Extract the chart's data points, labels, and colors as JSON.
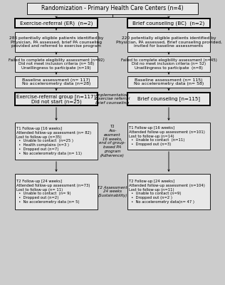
{
  "bg_color": "#cccccc",
  "box_fill": "#e8e8e8",
  "title": "Randomization - Primary Health Care Centers (n=4)",
  "left_arm_title": "Exercise-referral (ER)  (n=2)",
  "right_arm_title": "Brief counseling (BC)  (n=2)",
  "left_box1": "286 potentially eligible patients identified by\nPhysician, PA assessed, brief PA counseling\nprovided and referred to exercise program",
  "right_box1": "220 potentially eligible patients identified by\nPhysician, PA assessed, Brief counseling provided,\ninvited for baseline assessments",
  "left_excl": "Failed to complete elegibility assessment (n=92)\nDid not meet inclusion criteria (n= 58)\nUnwillingness to participate (n=19)",
  "right_excl": "Failed to complete elegibility assessment (n=45)\nDid no meet inclusion criteria (n= 52)\nUnwillingness to participate  (n=8)",
  "left_baseline": "Baseline assessment (n= 117)\nNo accelerometry data (n=28)",
  "right_baseline": "Baseline assessment (n= 115)\nNo accelerometry data (n= 58)",
  "left_group": "Exercise-referral group [n=117]\nDid not start (n=25)",
  "right_group": "Brief counseling [n=115]",
  "center_impl": "Implementation\nExercise referral\nbrief counseling",
  "left_t1": "T1 Follow-up [16 weeks]\nAttended follow-up assessment (n= 82)\nLost to follow-up (n=35)\n  •  Unable to contact  (n=25 )\n  •  Health complains (n=3 )\n  •  Dropped out (n=7)\n  •  No accelerometry data (n= 11)",
  "right_t1": "T1 Follow-up [16 weeks]\nAttended follow-up assessment (n=101)\nLost to follow-up (n=14)\n  •  Unable to contact  (n=11)\n  •  Dropped out (n=3)",
  "center_t1": "T1\nAss-\nessment\n16 weeks,\nend of group-\nbased PA\nprogram\n(Adherence)",
  "left_t2": "T2 Follow-up [24 weeks]\nAttended follow-up assessment (n=73)\nLost to follow-up (n= 11)\n  •  Unable to contact  (n= 9)\n  •  Dropped out (n=2)\n  •  No accelerometry data (n= 5)",
  "right_t2": "T2 Follow-up [24 weeks]\nAttended follow-up assessment (n=104)\nLost to follow-up (n=11)\n  •  Unable to contact (n=9)\n  •  Dropped out (n=2 )\n  •  No accelerometry data(n= 47 )",
  "center_t2": "T2 Assessment\n24 weeks\n(Sustainability)"
}
